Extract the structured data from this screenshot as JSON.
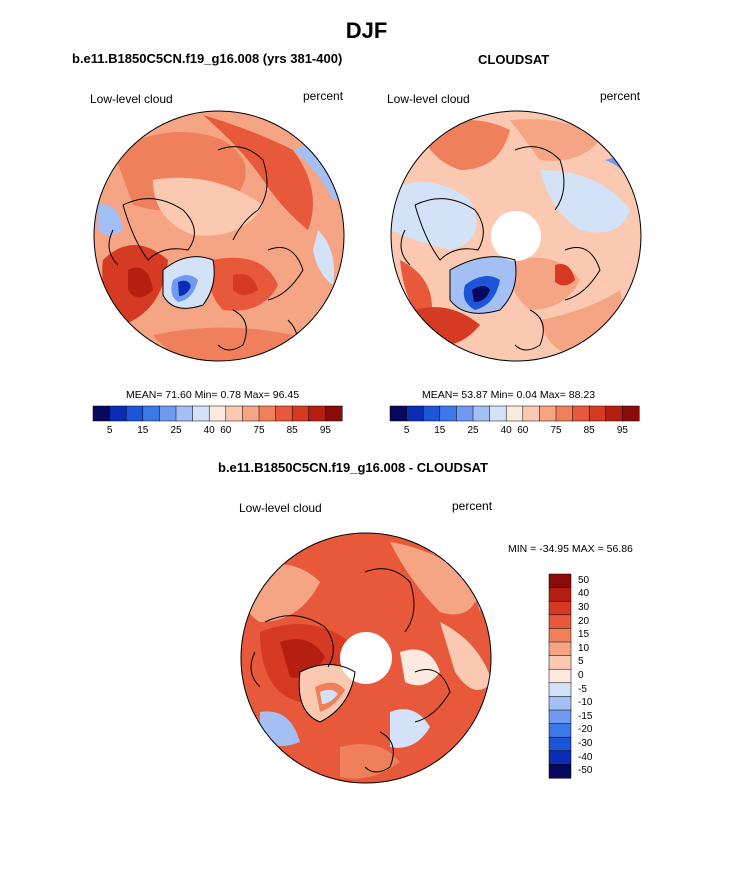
{
  "title": "DJF",
  "panel_left": {
    "subtitle": "b.e11.B1850C5CN.f19_g16.008 (yrs 381-400)",
    "field_label": "Low-level cloud",
    "units": "percent",
    "stats": "MEAN=  71.60  Min=   0.78  Max=  96.45"
  },
  "panel_right": {
    "subtitle": "CLOUDSAT",
    "field_label": "Low-level cloud",
    "units": "percent",
    "stats": "MEAN=  53.87  Min=   0.04  Max=  88.23"
  },
  "panel_diff": {
    "subtitle": "b.e11.B1850C5CN.f19_g16.008 - CLOUDSAT",
    "field_label": "Low-level cloud",
    "units": "percent",
    "stats": "MIN = -34.95 MAX =  56.86"
  },
  "colorbar_h": {
    "colors": [
      "#08085f",
      "#0b2cb4",
      "#1d55d8",
      "#3d78e8",
      "#6f9af0",
      "#a3bff4",
      "#d3e2f6",
      "#fce9df",
      "#fbc9b1",
      "#f6a584",
      "#f0805b",
      "#e8583a",
      "#d63a22",
      "#b51f12",
      "#8a0b07"
    ],
    "tick_labels": [
      "5",
      "15",
      "25",
      "40",
      "60",
      "75",
      "85",
      "95"
    ]
  },
  "colorbar_v": {
    "colors": [
      "#8a0b07",
      "#b51f12",
      "#d63a22",
      "#e8583a",
      "#f0805b",
      "#f6a584",
      "#fbc9b1",
      "#fce9df",
      "#d3e2f6",
      "#a3bff4",
      "#6f9af0",
      "#3d78e8",
      "#1d55d8",
      "#0b2cb4",
      "#08085f"
    ],
    "tick_labels": [
      "50",
      "40",
      "30",
      "20",
      "15",
      "10",
      "5",
      "0",
      "-5",
      "-10",
      "-15",
      "-20",
      "-30",
      "-40",
      "-50"
    ]
  },
  "colors": {
    "land_outline": "#000000",
    "missing_data": "#ffffff"
  }
}
